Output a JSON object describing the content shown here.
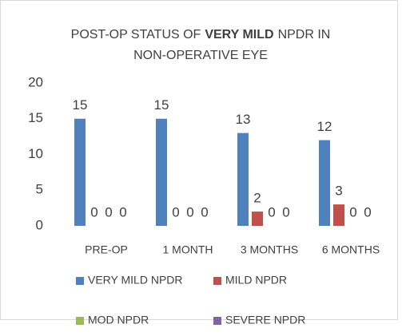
{
  "chart_data": {
    "type": "bar",
    "title_lines": [
      [
        {
          "text": "POST-OP STATUS OF",
          "bold": false
        },
        {
          "text": "VERY MILD",
          "bold": true
        },
        {
          "text": "NPDR IN",
          "bold": false
        }
      ],
      [
        {
          "text": "NON-OPERATIVE EYE",
          "bold": false
        }
      ]
    ],
    "categories": [
      "PRE-OP",
      "1 MONTH",
      "3 MONTHS",
      "6 MONTHS"
    ],
    "series": [
      {
        "name": "VERY MILD NPDR",
        "color": "#4f81bd",
        "values": [
          15,
          15,
          13,
          12
        ]
      },
      {
        "name": "MILD NPDR",
        "color": "#c0504d",
        "values": [
          0,
          0,
          2,
          3
        ]
      },
      {
        "name": "MOD NPDR",
        "color": "#9bbb59",
        "values": [
          0,
          0,
          0,
          0
        ]
      },
      {
        "name": "SEVERE NPDR",
        "color": "#8064a2",
        "values": [
          0,
          0,
          0,
          0
        ]
      }
    ],
    "ylim": [
      0,
      20
    ],
    "yticks": [
      0,
      5,
      10,
      15,
      20
    ],
    "grid": false,
    "legend": "bottom",
    "data_labels": true
  }
}
